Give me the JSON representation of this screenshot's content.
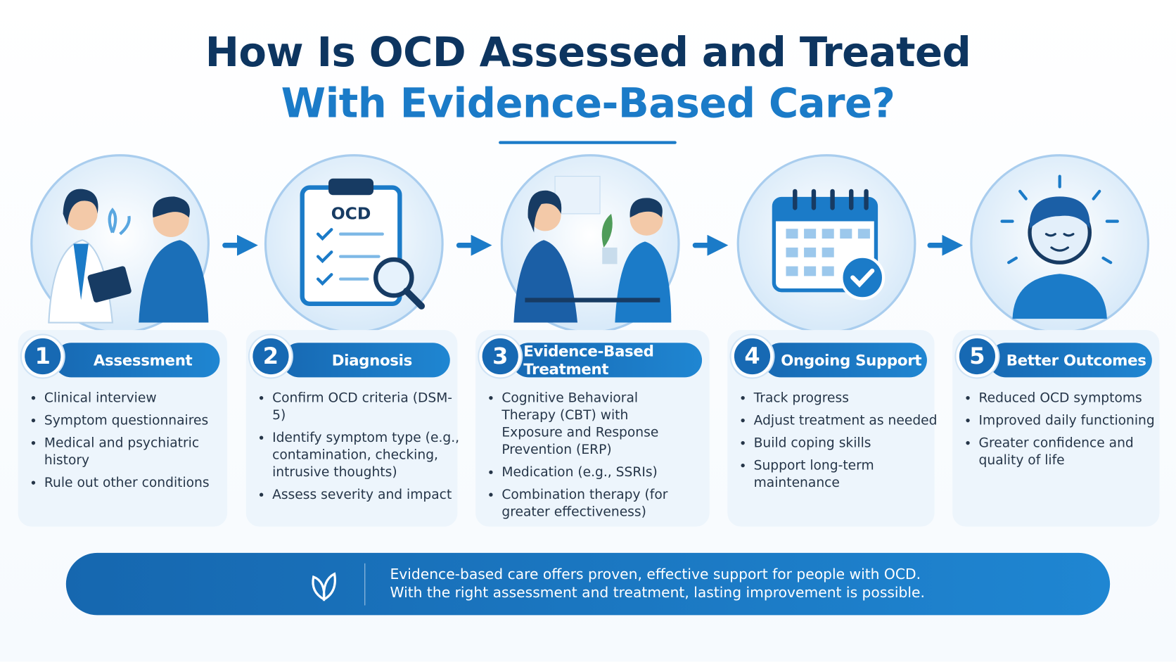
{
  "title": {
    "line1": "How Is OCD Assessed and Treated",
    "line2": "With Evidence-Based Care?"
  },
  "steps": [
    {
      "number": 1,
      "label": "Assessment",
      "bullets": [
        "Clinical interview",
        "Symptom questionnaires",
        "Medical and psychiatric history",
        "Rule out other conditions"
      ]
    },
    {
      "number": 2,
      "label": "Diagnosis",
      "icon_text": "OCD",
      "bullets": [
        "Confirm OCD criteria (DSM-5)",
        "Identify symptom type (e.g., contamination, checking, intrusive thoughts)",
        "Assess severity and impact"
      ]
    },
    {
      "number": 3,
      "label": "Evidence-Based Treatment",
      "bullets": [
        "Cognitive Behavioral Therapy (CBT) with Exposure and Response Prevention (ERP)",
        "Medication (e.g., SSRIs)",
        "Combination therapy (for greater effectiveness)"
      ]
    },
    {
      "number": 4,
      "label": "Ongoing Support",
      "bullets": [
        "Track progress",
        "Adjust treatment as needed",
        "Build coping skills",
        "Support long-term maintenance"
      ]
    },
    {
      "number": 5,
      "label": "Better Outcomes",
      "bullets": [
        "Reduced OCD symptoms",
        "Improved daily functioning",
        "Greater confidence and quality of life"
      ]
    }
  ],
  "footer": {
    "line1": "Evidence-based care offers proven, effective support for people with OCD.",
    "line2": "With the right assessment and treatment, lasting improvement is possible."
  }
}
